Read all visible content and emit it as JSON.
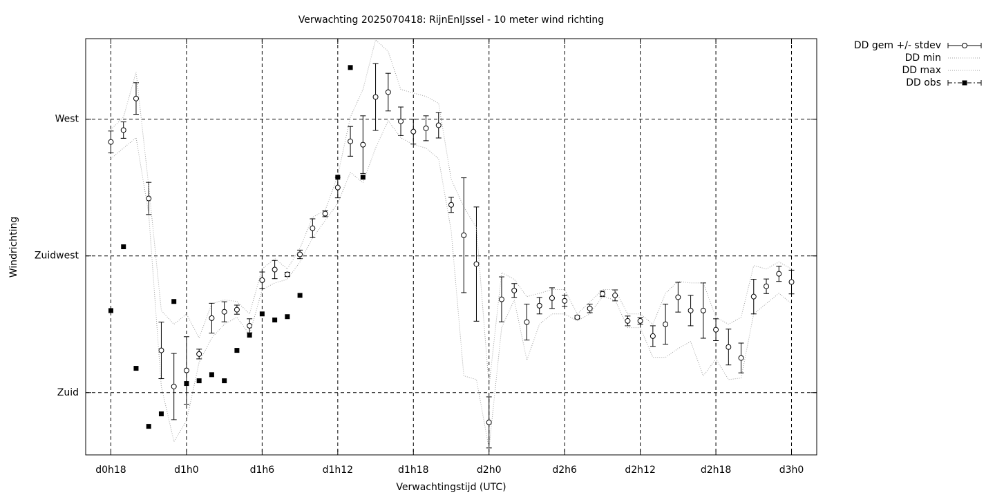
{
  "chart_data": {
    "type": "line",
    "title": "Verwachting 2025070418: RijnEnIJssel - 10 meter wind richting",
    "x_label": "Verwachtingstijd (UTC)",
    "y_label": "Windrichting",
    "x": [
      18,
      19,
      20,
      21,
      22,
      23,
      24,
      25,
      26,
      27,
      28,
      29,
      30,
      31,
      32,
      33,
      34,
      35,
      36,
      37,
      38,
      39,
      40,
      41,
      42,
      43,
      44,
      45,
      46,
      47,
      48,
      49,
      50,
      51,
      52,
      53,
      54,
      55,
      56,
      57,
      58,
      59,
      60,
      61,
      62,
      63,
      64,
      65,
      66,
      67,
      68,
      69,
      70,
      71,
      72
    ],
    "xlim": [
      16,
      74
    ],
    "xticks": [
      {
        "value": 18,
        "label": "d0h18"
      },
      {
        "value": 24,
        "label": "d1h0"
      },
      {
        "value": 30,
        "label": "d1h6"
      },
      {
        "value": 36,
        "label": "d1h12"
      },
      {
        "value": 42,
        "label": "d1h18"
      },
      {
        "value": 48,
        "label": "d2h0"
      },
      {
        "value": 54,
        "label": "d2h6"
      },
      {
        "value": 60,
        "label": "d2h12"
      },
      {
        "value": 66,
        "label": "d2h18"
      },
      {
        "value": 72,
        "label": "d3h0"
      }
    ],
    "ylim": [
      159.5,
      296.5
    ],
    "yticks": [
      {
        "value": 180,
        "label": "Zuid"
      },
      {
        "value": 225,
        "label": "Zuidwest"
      },
      {
        "value": 270,
        "label": "West"
      }
    ],
    "grid": true,
    "legend": "outside-top-right",
    "series": [
      {
        "name": "DD gem +/- stdev",
        "color": "#000000",
        "marker": "circle",
        "line": "errorbar",
        "values": [
          262.5,
          266.4,
          276.8,
          243.9,
          193.9,
          182.0,
          187.3,
          192.7,
          204.5,
          206.6,
          207.3,
          202.0,
          217.0,
          220.5,
          218.9,
          225.5,
          234.1,
          238.9,
          247.5,
          262.7,
          261.6,
          277.3,
          278.9,
          269.3,
          265.9,
          267.0,
          268.0,
          241.8,
          231.8,
          222.3,
          170.2,
          210.7,
          213.6,
          203.2,
          208.6,
          211.1,
          210.2,
          204.8,
          207.7,
          212.5,
          212.0,
          203.6,
          203.6,
          198.6,
          202.5,
          211.4,
          207.0,
          207.0,
          200.7,
          195.0,
          191.4,
          211.6,
          215.0,
          219.1,
          216.4
        ],
        "errors": [
          3.6,
          2.7,
          5.2,
          5.3,
          9.3,
          10.9,
          11.1,
          1.6,
          4.9,
          3.3,
          1.5,
          2.3,
          2.7,
          3.0,
          0.7,
          1.4,
          3.1,
          1.0,
          3.4,
          4.9,
          9.5,
          11.0,
          6.2,
          4.7,
          4.1,
          4.1,
          4.2,
          2.5,
          18.9,
          18.8,
          8.4,
          7.4,
          2.3,
          5.9,
          2.7,
          3.4,
          1.8,
          0.5,
          1.4,
          0.9,
          1.8,
          1.6,
          1.1,
          3.4,
          6.6,
          4.9,
          5.0,
          9.1,
          3.6,
          5.9,
          4.9,
          5.7,
          2.4,
          2.5,
          3.9
        ]
      },
      {
        "name": "DD min",
        "color": "#a0a0a0",
        "marker": "none",
        "line": "dotted",
        "values": [
          257.0,
          260.5,
          263.9,
          238.9,
          182.0,
          163.9,
          170.7,
          190.0,
          198.0,
          202.5,
          204.8,
          199.1,
          213.9,
          216.1,
          217.3,
          223.0,
          230.9,
          236.6,
          242.3,
          252.5,
          249.1,
          260.5,
          269.5,
          263.9,
          261.6,
          260.5,
          257.0,
          233.2,
          185.5,
          184.3,
          161.6,
          201.4,
          210.5,
          190.7,
          202.5,
          205.9,
          205.9,
          203.6,
          205.9,
          211.6,
          210.5,
          201.4,
          201.4,
          191.6,
          191.6,
          194.5,
          196.8,
          185.5,
          191.1,
          184.3,
          184.8,
          205.9,
          209.3,
          212.7,
          209.3
        ]
      },
      {
        "name": "DD max",
        "color": "#a0a0a0",
        "marker": "none",
        "line": "dotted",
        "values": [
          266.6,
          270.7,
          285.5,
          248.0,
          207.0,
          202.5,
          205.9,
          198.0,
          209.3,
          210.5,
          210.0,
          205.9,
          220.7,
          224.1,
          220.7,
          227.5,
          237.7,
          240.0,
          251.4,
          270.7,
          279.8,
          296.1,
          292.3,
          279.8,
          278.6,
          277.5,
          275.2,
          250.2,
          241.1,
          234.3,
          182.0,
          219.5,
          217.3,
          211.6,
          212.7,
          213.9,
          213.9,
          205.9,
          209.8,
          213.9,
          213.9,
          205.9,
          205.9,
          202.5,
          212.7,
          216.6,
          216.1,
          216.1,
          204.8,
          202.5,
          204.8,
          221.8,
          220.7,
          223.0,
          220.7
        ]
      },
      {
        "name": "DD obs",
        "color": "#000000",
        "marker": "square",
        "line": "none",
        "values": [
          207.0,
          228.0,
          188.0,
          168.9,
          173.0,
          210.0,
          183.0,
          183.9,
          185.9,
          183.9,
          193.9,
          198.9,
          205.9,
          203.9,
          205.0,
          212.0,
          null,
          null,
          250.9,
          287.0,
          250.9,
          null,
          null,
          null,
          null,
          null,
          null,
          null,
          null,
          null,
          null,
          null,
          null,
          null,
          null,
          null,
          null,
          null,
          null,
          null,
          null,
          null,
          null,
          null,
          null,
          null,
          null,
          null,
          null,
          null,
          null,
          null,
          null,
          null,
          null
        ]
      }
    ]
  }
}
